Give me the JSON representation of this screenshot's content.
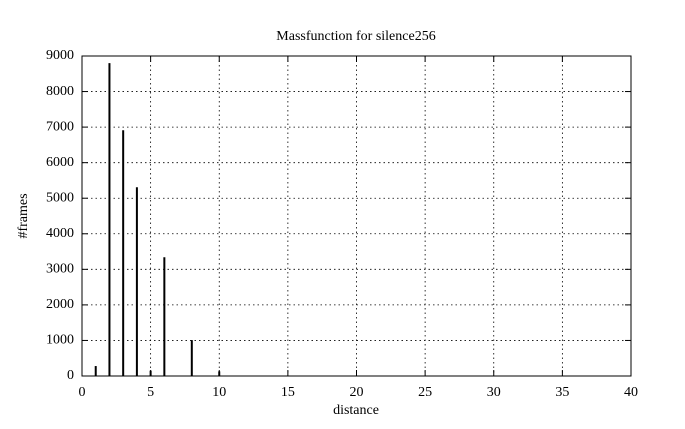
{
  "chart_data": {
    "type": "impulse",
    "title": "Massfunction for silence256",
    "x_label": "distance",
    "y_label": "#frames",
    "x": [
      1,
      2,
      3,
      4,
      5,
      6,
      8,
      10
    ],
    "values": [
      280,
      8800,
      6910,
      5310,
      150,
      3340,
      1010,
      130
    ],
    "color": "#000000",
    "xlim": [
      0,
      40
    ],
    "xticks": [
      0,
      5,
      10,
      15,
      20,
      25,
      30,
      35,
      40
    ],
    "ylim": [
      0,
      9000
    ],
    "yticks": [
      0,
      1000,
      2000,
      3000,
      4000,
      5000,
      6000,
      7000,
      8000,
      9000
    ],
    "grid": true
  }
}
